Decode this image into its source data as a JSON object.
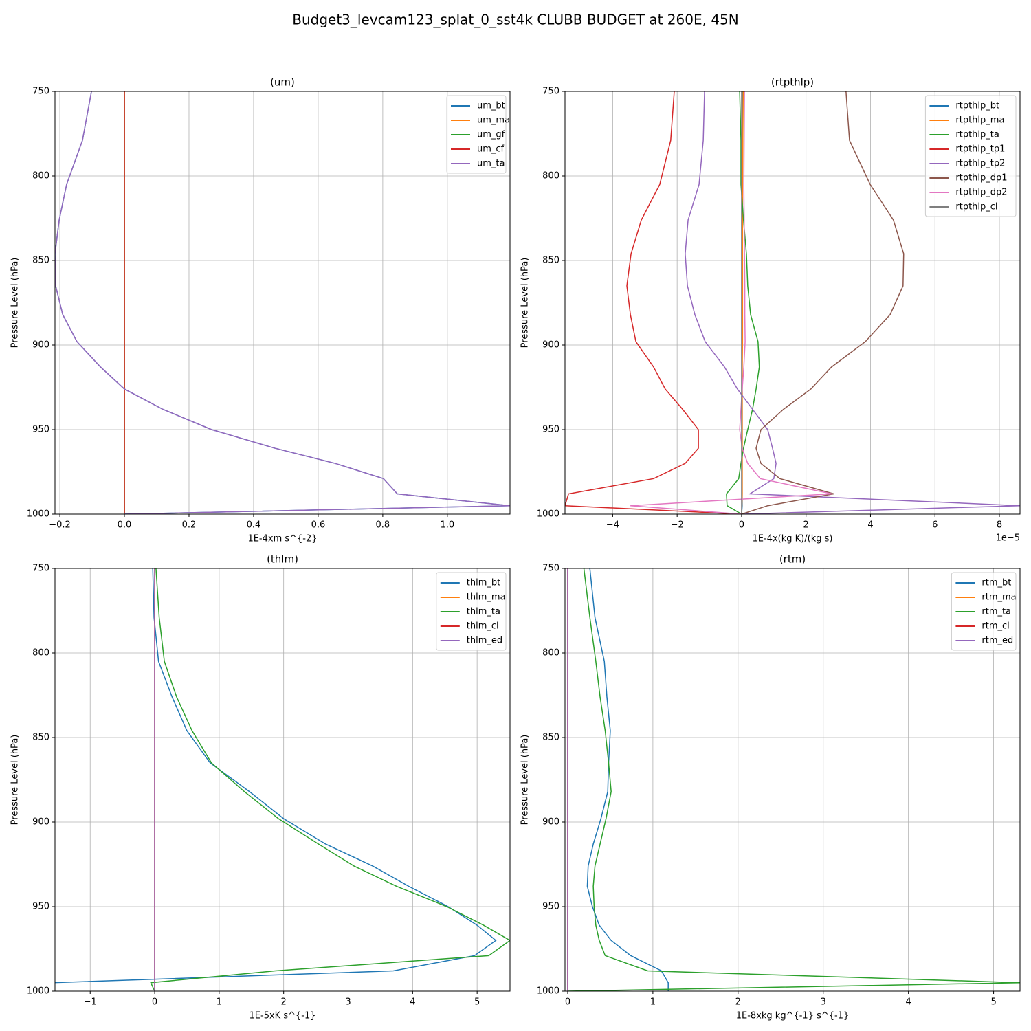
{
  "title": "Budget3_levcam123_splat_0_sst4k CLUBB BUDGET at 260E, 45N",
  "chart_data": [
    {
      "type": "line",
      "title": "(um)",
      "x_label": "1E-4xm s^{-2}",
      "y_label": "Pressure Level (hPa)",
      "y": [
        750,
        779,
        805,
        826,
        846,
        865,
        882,
        898,
        913,
        926,
        938,
        950,
        961,
        970,
        979,
        988,
        995,
        1000
      ],
      "xlim": [
        -0.215,
        1.194
      ],
      "ylim": [
        1000,
        750
      ],
      "xticks": [
        {
          "value": -0.2,
          "label": "−0.2"
        },
        {
          "value": 0,
          "label": "0.0"
        },
        0.2,
        0.4,
        0.6,
        0.8,
        {
          "value": 1,
          "label": "1.0"
        }
      ],
      "yticks": [
        750,
        800,
        850,
        900,
        950,
        1000
      ],
      "grid": true,
      "legend": "upper right",
      "series": [
        {
          "name": "um_bt",
          "color": "#1f77b4",
          "values": [
            -0.102,
            -0.13,
            -0.179,
            -0.202,
            -0.215,
            -0.213,
            -0.191,
            -0.147,
            -0.074,
            0,
            0.119,
            0.27,
            0.466,
            0.653,
            0.802,
            0.845,
            1.194,
            0
          ]
        },
        {
          "name": "um_ma",
          "color": "#ff7f0e",
          "values": [
            0,
            0,
            0,
            0,
            0,
            0,
            0,
            0,
            0,
            0,
            0,
            0,
            0,
            0,
            0,
            0,
            0,
            0
          ]
        },
        {
          "name": "um_gf",
          "color": "#2ca02c",
          "values": [
            0,
            0,
            0,
            0,
            0,
            0,
            0,
            0,
            0,
            0,
            0,
            0,
            0,
            0,
            0,
            0,
            0,
            0
          ]
        },
        {
          "name": "um_cf",
          "color": "#d62728",
          "values": [
            0,
            0,
            0,
            0,
            0,
            0,
            0,
            0,
            0,
            0,
            0,
            0,
            0,
            0,
            0,
            0,
            0,
            0
          ]
        },
        {
          "name": "um_ta",
          "color": "#9467bd",
          "values": [
            -0.102,
            -0.13,
            -0.179,
            -0.202,
            -0.215,
            -0.213,
            -0.191,
            -0.147,
            -0.074,
            0,
            0.119,
            0.27,
            0.466,
            0.653,
            0.802,
            0.845,
            1.194,
            0
          ]
        }
      ]
    },
    {
      "type": "line",
      "title": "(rtpthlp)",
      "x_label": "1E-4x(kg K)/(kg s)",
      "y_label": "Pressure Level (hPa)",
      "x_offset_text": "1e−5",
      "y": [
        750,
        779,
        805,
        826,
        846,
        865,
        882,
        898,
        913,
        926,
        938,
        950,
        961,
        970,
        979,
        988,
        995,
        1000
      ],
      "xlim": [
        -5.48,
        8.64
      ],
      "ylim": [
        1000,
        750
      ],
      "xticks": [
        {
          "value": -4,
          "label": "−4"
        },
        {
          "value": -2,
          "label": "−2"
        },
        0,
        2,
        4,
        6,
        8
      ],
      "yticks": [
        750,
        800,
        850,
        900,
        950,
        1000
      ],
      "grid": true,
      "legend": "upper right",
      "series": [
        {
          "name": "rtpthlp_bt",
          "color": "#1f77b4",
          "values": [
            0.02,
            0.02,
            0.02,
            0.02,
            0.02,
            0.02,
            0.02,
            0.02,
            0.02,
            0.02,
            0.02,
            0.02,
            0.02,
            0.02,
            0.02,
            0.02,
            0.02,
            0
          ]
        },
        {
          "name": "rtpthlp_ma",
          "color": "#ff7f0e",
          "values": [
            0.05,
            0.04,
            0.03,
            0.03,
            0.03,
            0.03,
            0.03,
            0.03,
            0.02,
            0.02,
            0.02,
            0.02,
            0.02,
            0.02,
            0.02,
            0.02,
            0.01,
            0
          ]
        },
        {
          "name": "rtpthlp_ta",
          "color": "#2ca02c",
          "values": [
            -0.06,
            -0.02,
            -0.02,
            0.06,
            0.15,
            0.19,
            0.28,
            0.51,
            0.55,
            0.45,
            0.34,
            0.19,
            0.06,
            -0.02,
            -0.09,
            -0.47,
            -0.45,
            0
          ]
        },
        {
          "name": "rtpthlp_tp1",
          "color": "#d62728",
          "values": [
            -2.09,
            -2.2,
            -2.54,
            -3.11,
            -3.43,
            -3.56,
            -3.45,
            -3.28,
            -2.73,
            -2.37,
            -1.83,
            -1.34,
            -1.34,
            -1.75,
            -2.73,
            -5.37,
            -5.48,
            0
          ]
        },
        {
          "name": "rtpthlp_tp2",
          "color": "#9467bd",
          "values": [
            -1.15,
            -1.19,
            -1.32,
            -1.66,
            -1.75,
            -1.68,
            -1.45,
            -1.13,
            -0.53,
            -0.13,
            0.34,
            0.81,
            0.96,
            1.07,
            1.0,
            0.26,
            8.64,
            0
          ]
        },
        {
          "name": "rtpthlp_dp1",
          "color": "#8c564b",
          "values": [
            3.24,
            3.35,
            3.99,
            4.71,
            5.03,
            5.01,
            4.61,
            3.84,
            2.79,
            2.15,
            1.3,
            0.6,
            0.45,
            0.6,
            1.19,
            2.86,
            0.81,
            0
          ]
        },
        {
          "name": "rtpthlp_dp2",
          "color": "#e377c2",
          "values": [
            0.09,
            0.08,
            0.07,
            0.08,
            0.09,
            0.1,
            0.1,
            0.11,
            0.07,
            0.02,
            -0.02,
            -0.06,
            0.02,
            0.19,
            0.58,
            2.8,
            -3.45,
            0
          ]
        },
        {
          "name": "rtpthlp_cl",
          "color": "#7f7f7f",
          "values": [
            0,
            0,
            0,
            0,
            0,
            0,
            0,
            0,
            0,
            0,
            0,
            0,
            0,
            0,
            0,
            0,
            0,
            0
          ]
        }
      ]
    },
    {
      "type": "line",
      "title": "(thlm)",
      "x_label": "1E-5xK s^{-1}",
      "y_label": "Pressure Level (hPa)",
      "y": [
        750,
        779,
        805,
        826,
        846,
        865,
        882,
        898,
        913,
        926,
        938,
        950,
        961,
        970,
        979,
        988,
        995,
        1000
      ],
      "xlim": [
        -1.546,
        5.51
      ],
      "ylim": [
        1000,
        750
      ],
      "xticks": [
        {
          "value": -1,
          "label": "−1"
        },
        0,
        1,
        2,
        3,
        4,
        5
      ],
      "yticks": [
        750,
        800,
        850,
        900,
        950,
        1000
      ],
      "grid": true,
      "legend": "upper right",
      "series": [
        {
          "name": "thlm_bt",
          "color": "#1f77b4",
          "values": [
            -0.03,
            -0.01,
            0.06,
            0.27,
            0.5,
            0.86,
            1.47,
            2.0,
            2.65,
            3.38,
            3.94,
            4.55,
            5.0,
            5.29,
            4.96,
            3.7,
            -1.55,
            -1.6
          ]
        },
        {
          "name": "thlm_ma",
          "color": "#ff7f0e",
          "values": [
            0,
            0,
            0,
            0,
            0,
            0,
            0,
            0,
            0,
            0,
            0,
            0,
            0,
            0,
            0,
            0,
            0,
            0
          ]
        },
        {
          "name": "thlm_ta",
          "color": "#2ca02c",
          "values": [
            0.02,
            0.07,
            0.15,
            0.34,
            0.58,
            0.88,
            1.39,
            1.92,
            2.54,
            3.09,
            3.75,
            4.53,
            5.1,
            5.51,
            5.18,
            1.87,
            -0.06,
            0
          ]
        },
        {
          "name": "thlm_cl",
          "color": "#d62728",
          "values": [
            0,
            0,
            0,
            0,
            0,
            0,
            0,
            0,
            0,
            0,
            0,
            0,
            0,
            0,
            0,
            0,
            0,
            0
          ]
        },
        {
          "name": "thlm_ed",
          "color": "#9467bd",
          "values": [
            0,
            0,
            0,
            0,
            0,
            0,
            0,
            0,
            0,
            0,
            0,
            0,
            0,
            0,
            0,
            0,
            0,
            0
          ]
        }
      ]
    },
    {
      "type": "line",
      "title": "(rtm)",
      "x_label": "1E-8xkg kg^{-1} s^{-1}",
      "y_label": "Pressure Level (hPa)",
      "y": [
        750,
        779,
        805,
        826,
        846,
        865,
        882,
        898,
        913,
        926,
        938,
        950,
        961,
        970,
        979,
        988,
        995,
        1000
      ],
      "xlim": [
        -0.032,
        5.31
      ],
      "ylim": [
        1000,
        750
      ],
      "xticks": [
        0,
        1,
        2,
        3,
        4,
        5
      ],
      "yticks": [
        750,
        800,
        850,
        900,
        950,
        1000
      ],
      "grid": true,
      "legend": "upper right",
      "series": [
        {
          "name": "rtm_bt",
          "color": "#1f77b4",
          "values": [
            0.26,
            0.32,
            0.43,
            0.46,
            0.5,
            0.48,
            0.47,
            0.39,
            0.3,
            0.24,
            0.23,
            0.29,
            0.37,
            0.51,
            0.74,
            1.1,
            1.18,
            1.18
          ]
        },
        {
          "name": "rtm_ma",
          "color": "#ff7f0e",
          "values": [
            0,
            0,
            0,
            0,
            0,
            0,
            0,
            0,
            0,
            0,
            0,
            0,
            0,
            0,
            0,
            0,
            0,
            0
          ]
        },
        {
          "name": "rtm_ta",
          "color": "#2ca02c",
          "values": [
            0.19,
            0.26,
            0.33,
            0.38,
            0.44,
            0.48,
            0.51,
            0.45,
            0.38,
            0.32,
            0.3,
            0.31,
            0.33,
            0.37,
            0.44,
            0.94,
            5.31,
            0
          ]
        },
        {
          "name": "rtm_cl",
          "color": "#d62728",
          "values": [
            0,
            0,
            0,
            0,
            0,
            0,
            0,
            0,
            0,
            0,
            0,
            0,
            0,
            0,
            0,
            0,
            0,
            0
          ]
        },
        {
          "name": "rtm_ed",
          "color": "#9467bd",
          "values": [
            0,
            0,
            0,
            0,
            0,
            0,
            0,
            0,
            0,
            0,
            0,
            0,
            0,
            0,
            0,
            0,
            0,
            0
          ]
        }
      ]
    }
  ]
}
